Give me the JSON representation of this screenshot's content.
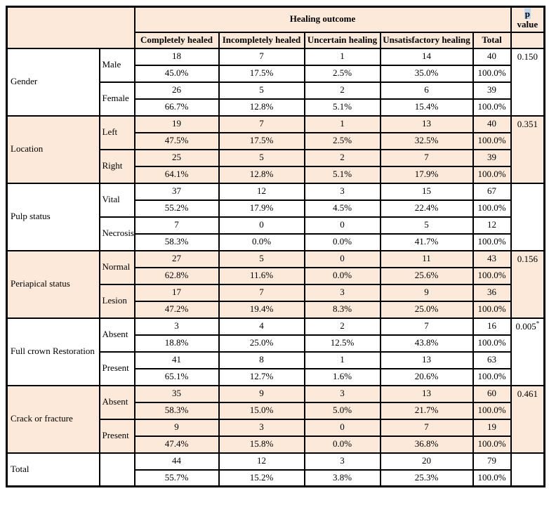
{
  "colors": {
    "section_shade": "#fde9d9",
    "border": "#000000",
    "p_highlight": "#bdd7ee",
    "page_background": "#ffffff"
  },
  "table": {
    "header": {
      "group_title": "Healing outcome",
      "p_label_highlight": "p",
      "p_label_rest": " value",
      "columns": [
        "Completely healed",
        "Incompletely healed",
        "Uncertain healing",
        "Unsatisfactory healing",
        "Total"
      ]
    },
    "sections": [
      {
        "category": "Gender",
        "p_value": "0.150",
        "p_sup": "",
        "shaded": false,
        "rows": [
          {
            "label": "Male",
            "counts": [
              "18",
              "7",
              "1",
              "14",
              "40"
            ],
            "percents": [
              "45.0%",
              "17.5%",
              "2.5%",
              "35.0%",
              "100.0%"
            ]
          },
          {
            "label": "Female",
            "counts": [
              "26",
              "5",
              "2",
              "6",
              "39"
            ],
            "percents": [
              "66.7%",
              "12.8%",
              "5.1%",
              "15.4%",
              "100.0%"
            ]
          }
        ]
      },
      {
        "category": "Location",
        "p_value": "0.351",
        "p_sup": "",
        "shaded": true,
        "rows": [
          {
            "label": "Left",
            "counts": [
              "19",
              "7",
              "1",
              "13",
              "40"
            ],
            "percents": [
              "47.5%",
              "17.5%",
              "2.5%",
              "32.5%",
              "100.0%"
            ]
          },
          {
            "label": "Right",
            "counts": [
              "25",
              "5",
              "2",
              "7",
              "39"
            ],
            "percents": [
              "64.1%",
              "12.8%",
              "5.1%",
              "17.9%",
              "100.0%"
            ]
          }
        ]
      },
      {
        "category": "Pulp status",
        "p_value": "",
        "p_sup": "",
        "shaded": false,
        "rows": [
          {
            "label": "Vital",
            "counts": [
              "37",
              "12",
              "3",
              "15",
              "67"
            ],
            "percents": [
              "55.2%",
              "17.9%",
              "4.5%",
              "22.4%",
              "100.0%"
            ]
          },
          {
            "label": "Necrosis",
            "counts": [
              "7",
              "0",
              "0",
              "5",
              "12"
            ],
            "percents": [
              "58.3%",
              "0.0%",
              "0.0%",
              "41.7%",
              "100.0%"
            ]
          }
        ]
      },
      {
        "category": "Periapical status",
        "p_value": "0.156",
        "p_sup": "",
        "shaded": true,
        "rows": [
          {
            "label": "Normal",
            "counts": [
              "27",
              "5",
              "0",
              "11",
              "43"
            ],
            "percents": [
              "62.8%",
              "11.6%",
              "0.0%",
              "25.6%",
              "100.0%"
            ]
          },
          {
            "label": "Lesion",
            "counts": [
              "17",
              "7",
              "3",
              "9",
              "36"
            ],
            "percents": [
              "47.2%",
              "19.4%",
              "8.3%",
              "25.0%",
              "100.0%"
            ]
          }
        ]
      },
      {
        "category": "Full crown Restoration",
        "p_value": "0.005",
        "p_sup": "*",
        "shaded": false,
        "rows": [
          {
            "label": "Absent",
            "counts": [
              "3",
              "4",
              "2",
              "7",
              "16"
            ],
            "percents": [
              "18.8%",
              "25.0%",
              "12.5%",
              "43.8%",
              "100.0%"
            ]
          },
          {
            "label": "Present",
            "counts": [
              "41",
              "8",
              "1",
              "13",
              "63"
            ],
            "percents": [
              "65.1%",
              "12.7%",
              "1.6%",
              "20.6%",
              "100.0%"
            ]
          }
        ]
      },
      {
        "category": "Crack or fracture",
        "p_value": "0.461",
        "p_sup": "",
        "shaded": true,
        "rows": [
          {
            "label": "Absent",
            "counts": [
              "35",
              "9",
              "3",
              "13",
              "60"
            ],
            "percents": [
              "58.3%",
              "15.0%",
              "5.0%",
              "21.7%",
              "100.0%"
            ]
          },
          {
            "label": "Present",
            "counts": [
              "9",
              "3",
              "0",
              "7",
              "19"
            ],
            "percents": [
              "47.4%",
              "15.8%",
              "0.0%",
              "36.8%",
              "100.0%"
            ]
          }
        ]
      },
      {
        "category": "Total",
        "p_value": "",
        "p_sup": "",
        "shaded": false,
        "rows": [
          {
            "label": "",
            "counts": [
              "44",
              "12",
              "3",
              "20",
              "79"
            ],
            "percents": [
              "55.7%",
              "15.2%",
              "3.8%",
              "25.3%",
              "100.0%"
            ]
          }
        ]
      }
    ]
  }
}
